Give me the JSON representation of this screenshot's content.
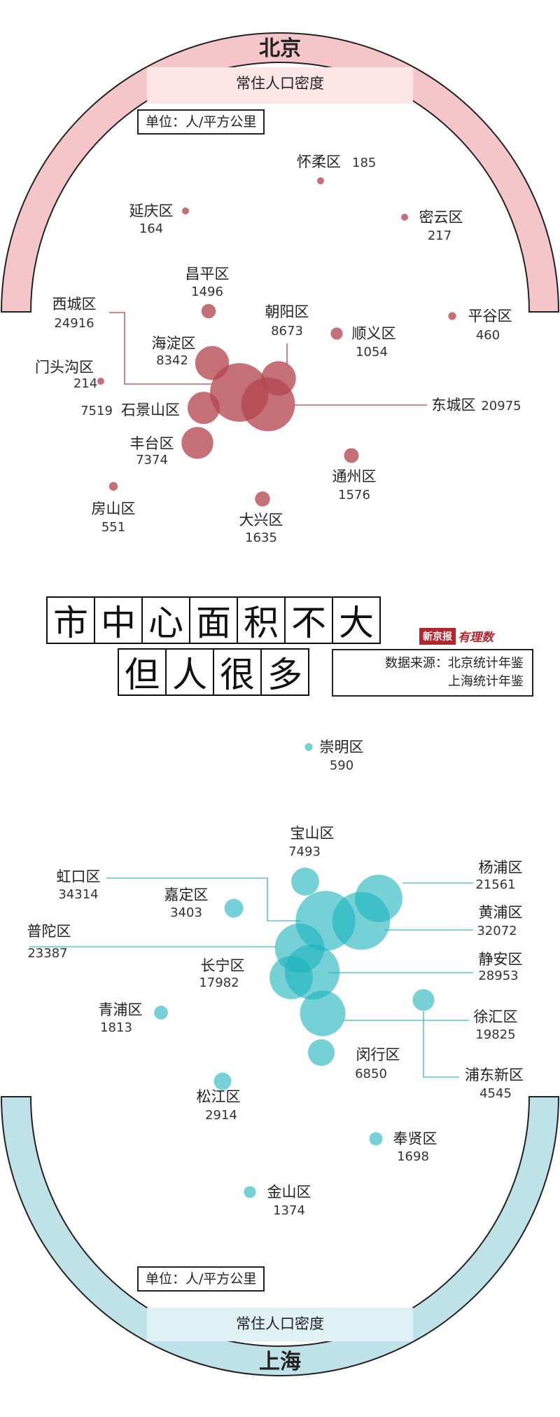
{
  "title": {
    "line1": [
      "市",
      "中",
      "心",
      "面",
      "积",
      "不",
      "大"
    ],
    "line2": [
      "但",
      "人",
      "很",
      "多"
    ]
  },
  "source": {
    "label": "数据来源：北京统计年鉴",
    "line2": "上海统计年鉴"
  },
  "logo": {
    "brand": "新京报",
    "column": "有理数"
  },
  "colors": {
    "beijing_ring": "#f5c6c9",
    "beijing_bubble": "#b3484f",
    "beijing_line": "#c0636a",
    "shanghai_ring": "#bfe2e8",
    "shanghai_bubble": "#1ab3bd",
    "shanghai_line": "#5fc3cb",
    "ring_stroke": "#222222"
  },
  "chart_data": [
    {
      "type": "scatter",
      "city": "北京",
      "title": "常住人口密度",
      "unit": "单位：人/平方公里",
      "districts": [
        {
          "name": "怀柔区",
          "value": "185"
        },
        {
          "name": "延庆区",
          "value": "164"
        },
        {
          "name": "密云区",
          "value": "217"
        },
        {
          "name": "昌平区",
          "value": "1496"
        },
        {
          "name": "西城区",
          "value": "24916"
        },
        {
          "name": "朝阳区",
          "value": "8673"
        },
        {
          "name": "顺义区",
          "value": "1054"
        },
        {
          "name": "平谷区",
          "value": "460"
        },
        {
          "name": "海淀区",
          "value": "8342"
        },
        {
          "name": "门头沟区",
          "value": "214"
        },
        {
          "name": "石景山区",
          "value": "7519"
        },
        {
          "name": "东城区",
          "value": "20975"
        },
        {
          "name": "丰台区",
          "value": "7374"
        },
        {
          "name": "通州区",
          "value": "1576"
        },
        {
          "name": "房山区",
          "value": "551"
        },
        {
          "name": "大兴区",
          "value": "1635"
        }
      ]
    },
    {
      "type": "scatter",
      "city": "上海",
      "title": "常住人口密度",
      "unit": "单位：人/平方公里",
      "districts": [
        {
          "name": "崇明区",
          "value": "590"
        },
        {
          "name": "宝山区",
          "value": "7493"
        },
        {
          "name": "虹口区",
          "value": "34314"
        },
        {
          "name": "嘉定区",
          "value": "3403"
        },
        {
          "name": "杨浦区",
          "value": "21561"
        },
        {
          "name": "黄浦区",
          "value": "32072"
        },
        {
          "name": "普陀区",
          "value": "23387"
        },
        {
          "name": "长宁区",
          "value": "17982"
        },
        {
          "name": "静安区",
          "value": "28953"
        },
        {
          "name": "青浦区",
          "value": "1813"
        },
        {
          "name": "徐汇区",
          "value": "19825"
        },
        {
          "name": "闵行区",
          "value": "6850"
        },
        {
          "name": "浦东新区",
          "value": "4545"
        },
        {
          "name": "松江区",
          "value": "2914"
        },
        {
          "name": "奉贤区",
          "value": "1698"
        },
        {
          "name": "金山区",
          "value": "1374"
        }
      ]
    }
  ]
}
